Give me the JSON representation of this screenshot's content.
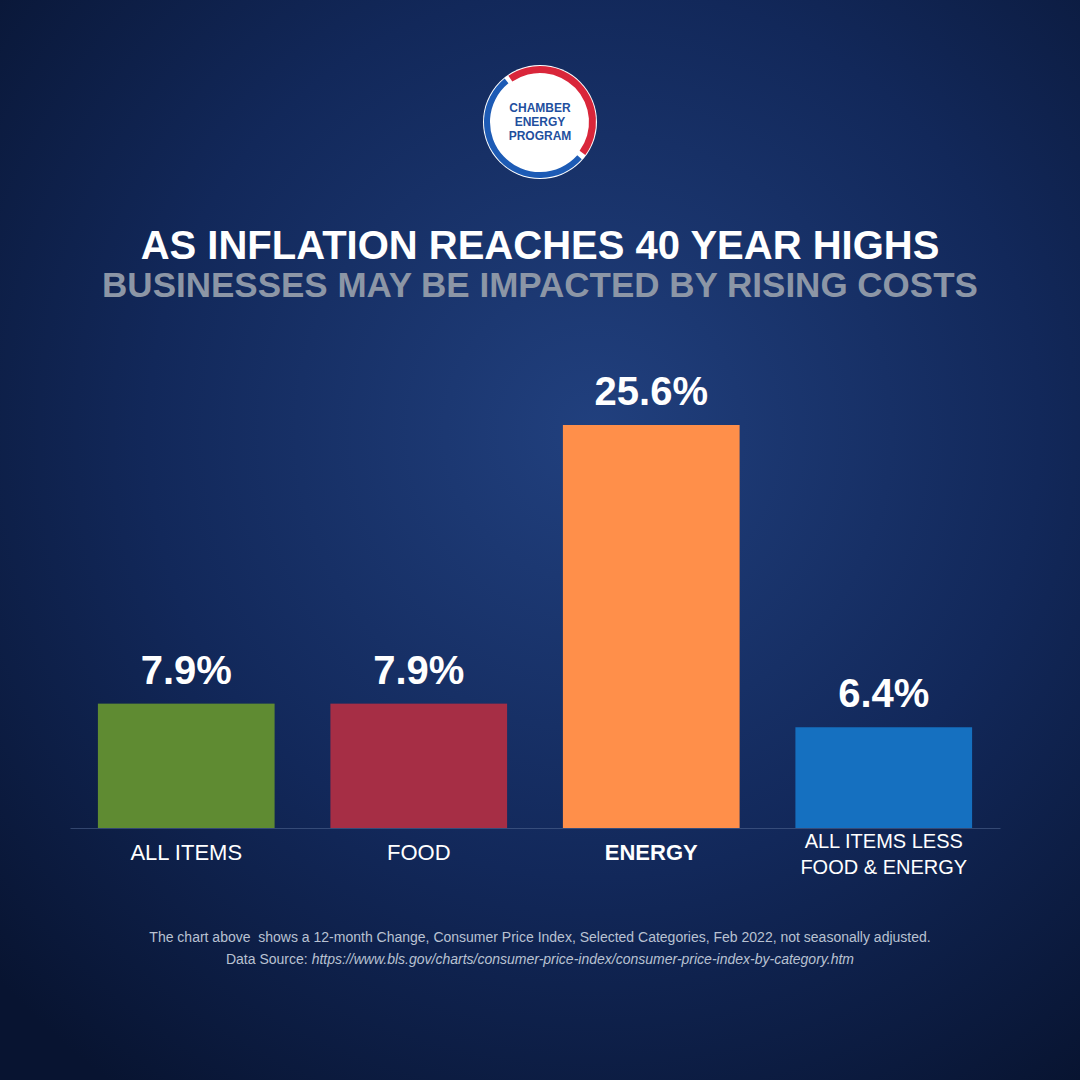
{
  "chart_data": {
    "type": "bar",
    "title": "AS INFLATION REACHES 40 YEAR HIGHS",
    "subtitle": "BUSINESSES MAY BE IMPACTED BY RISING COSTS",
    "categories": [
      "ALL ITEMS",
      "FOOD",
      "ENERGY",
      "ALL ITEMS LESS FOOD & ENERGY"
    ],
    "values": [
      7.9,
      7.9,
      25.6,
      6.4
    ],
    "value_labels": [
      "7.9%",
      "7.9%",
      "25.6%",
      "6.4%"
    ],
    "colors": [
      "#5f8b32",
      "#a62e45",
      "#ff8f4a",
      "#1570c0"
    ],
    "data_labels": true,
    "grid": false,
    "tick_labels": "x"
  },
  "logo": {
    "lines": [
      "CHAMBER",
      "ENERGY",
      "PROGRAM"
    ]
  },
  "footer": {
    "note": "The chart above  shows a 12-month Change, Consumer Price Index, Selected Categories, Feb 2022, not seasonally adjusted.",
    "source_label": "Data Source:",
    "source_url": "https://www.bls.gov/charts/consumer-price-index/consumer-price-index-by-category.htm"
  }
}
